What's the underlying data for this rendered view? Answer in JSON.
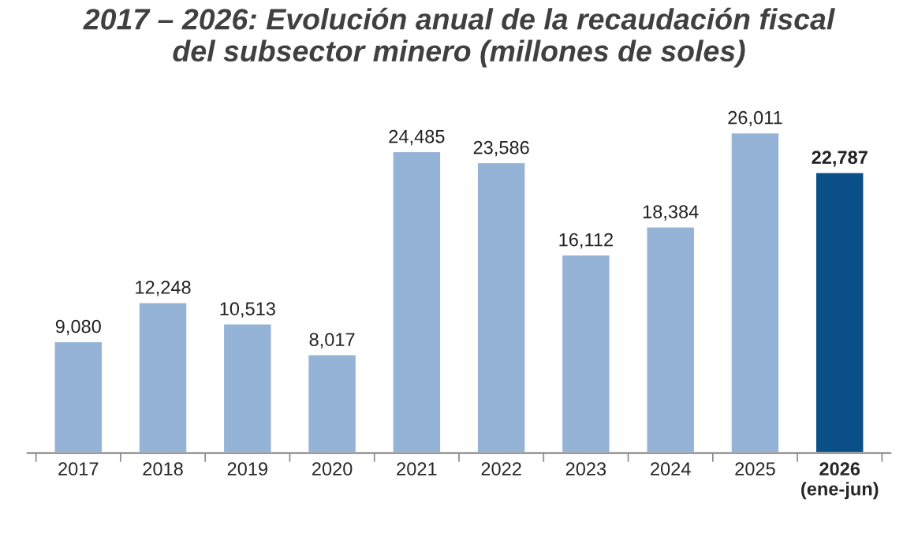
{
  "chart_data": {
    "type": "bar",
    "title": "2017 – 2026: Evolución anual de la recaudación fiscal\ndel subsector minero (millones de soles)",
    "categories": [
      "2017",
      "2018",
      "2019",
      "2020",
      "2021",
      "2022",
      "2023",
      "2024",
      "2025",
      "2026\n(ene-jun)"
    ],
    "values": [
      9080,
      12248,
      10513,
      8017,
      24485,
      23586,
      16112,
      18384,
      26011,
      22787
    ],
    "value_labels": [
      "9,080",
      "12,248",
      "10,513",
      "8,017",
      "24,485",
      "23,586",
      "16,112",
      "18,384",
      "26,011",
      "22,787"
    ],
    "colors": [
      "#95b3d7",
      "#95b3d7",
      "#95b3d7",
      "#95b3d7",
      "#95b3d7",
      "#95b3d7",
      "#95b3d7",
      "#95b3d7",
      "#95b3d7",
      "#0b4f88"
    ],
    "grid": false,
    "legend": false
  }
}
